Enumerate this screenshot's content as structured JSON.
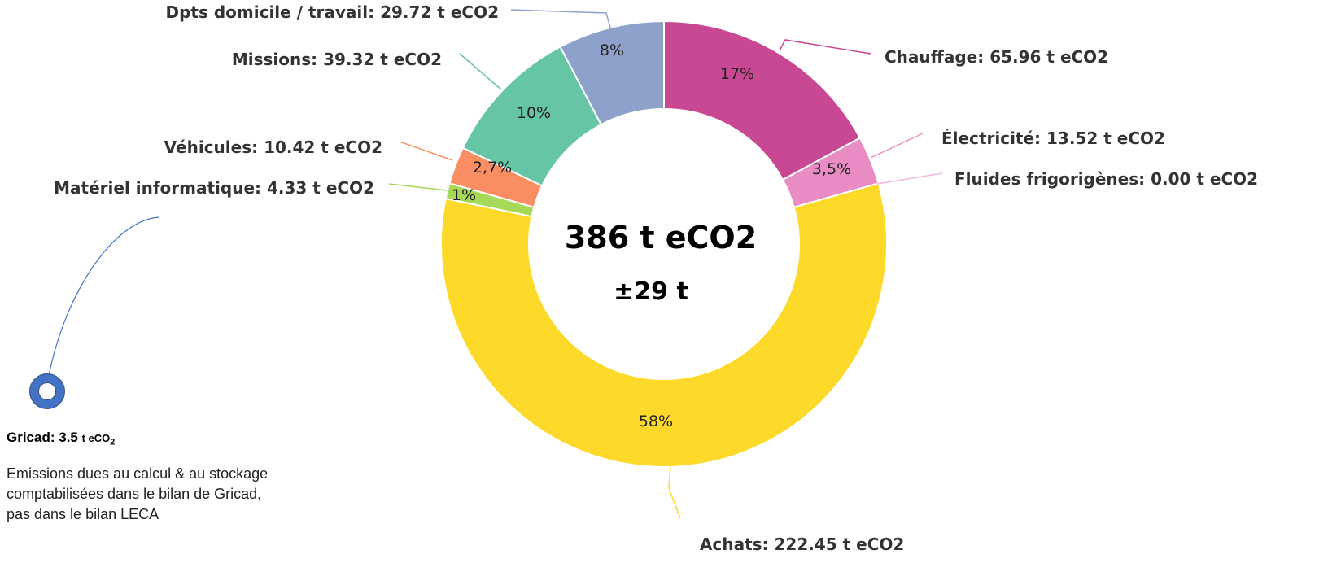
{
  "chart_data": {
    "type": "pie",
    "center_total": "386 t eCO2",
    "center_uncertainty": "±29 t",
    "series": [
      {
        "name": "Chauffage",
        "label": "Chauffage: 65.96 t eCO2",
        "value": 65.96,
        "pct_label": "17%",
        "color": "#c84893"
      },
      {
        "name": "Électricité",
        "label": "Électricité: 13.52 t eCO2",
        "value": 13.52,
        "pct_label": "3,5%",
        "color": "#e98cc4"
      },
      {
        "name": "Fluides frigorigènes",
        "label": "Fluides frigorigènes: 0.00 t eCO2",
        "value": 0.0,
        "pct_label": "",
        "color": "#f5b6da"
      },
      {
        "name": "Achats",
        "label": "Achats: 222.45 t eCO2",
        "value": 222.45,
        "pct_label": "58%",
        "color": "#fdd929"
      },
      {
        "name": "Matériel informatique",
        "label": "Matériel informatique: 4.33 t eCO2",
        "value": 4.33,
        "pct_label": "1%",
        "color": "#a6d957"
      },
      {
        "name": "Véhicules",
        "label": "Véhicules: 10.42 t eCO2",
        "value": 10.42,
        "pct_label": "2,7%",
        "color": "#fb8d62"
      },
      {
        "name": "Missions",
        "label": "Missions: 39.32 t eCO2",
        "value": 39.32,
        "pct_label": "10%",
        "color": "#66c5a5"
      },
      {
        "name": "Dpts domicile / travail",
        "label": "Dpts domicile / travail: 29.72 t eCO2",
        "value": 29.72,
        "pct_label": "8%",
        "color": "#8ea1cb"
      }
    ]
  },
  "gricad": {
    "title_prefix": "Gricad: 3.5",
    "unit": "t eCO",
    "unit_sub": "2",
    "description": "Emissions dues au calcul & au stockage\ncomptabilisées dans le bilan de Gricad,\n pas dans le bilan LECA",
    "ring_color": "#4472c4"
  }
}
